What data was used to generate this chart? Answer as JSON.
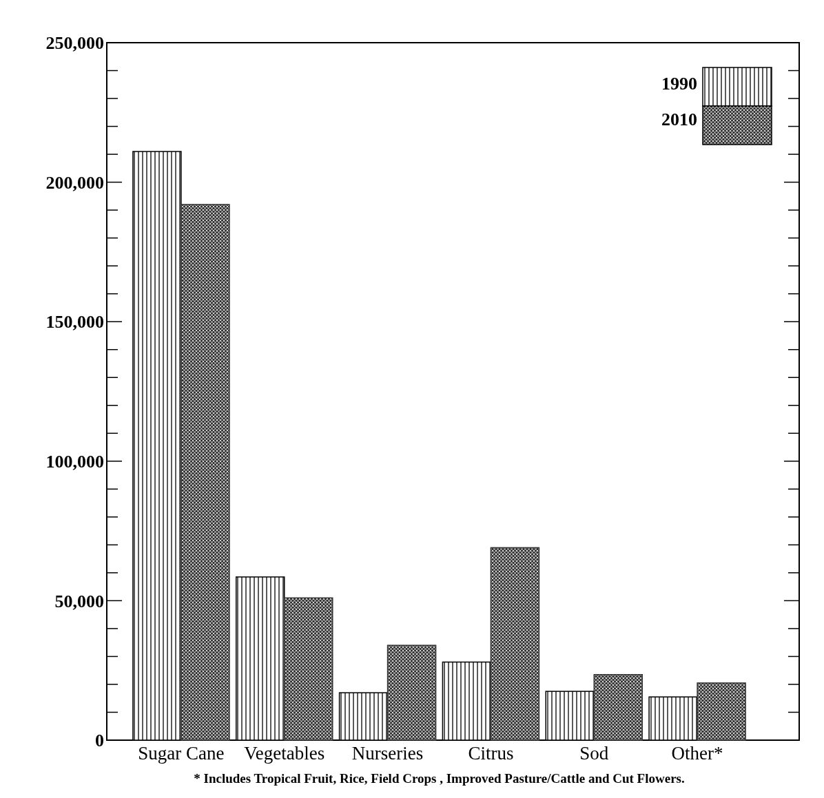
{
  "chart_data": {
    "type": "bar",
    "categories": [
      "Sugar Cane",
      "Vegetables",
      "Nurseries",
      "Citrus",
      "Sod",
      "Other*"
    ],
    "series": [
      {
        "name": "1990",
        "color": "#000000",
        "values": [
          211000,
          58500,
          17000,
          28000,
          17500,
          15500
        ]
      },
      {
        "name": "2010",
        "color": "#333333",
        "values": [
          192000,
          51000,
          34000,
          69000,
          23500,
          20500
        ]
      }
    ],
    "ylim": [
      0,
      250000
    ],
    "yticks": [
      {
        "value": 0,
        "label": "0"
      },
      {
        "value": 10000,
        "label": null
      },
      {
        "value": 20000,
        "label": null
      },
      {
        "value": 30000,
        "label": null
      },
      {
        "value": 40000,
        "label": null
      },
      {
        "value": 50000,
        "label": "50,000"
      },
      {
        "value": 60000,
        "label": null
      },
      {
        "value": 70000,
        "label": null
      },
      {
        "value": 80000,
        "label": null
      },
      {
        "value": 90000,
        "label": null
      },
      {
        "value": 100000,
        "label": "100,000"
      },
      {
        "value": 110000,
        "label": null
      },
      {
        "value": 120000,
        "label": null
      },
      {
        "value": 130000,
        "label": null
      },
      {
        "value": 140000,
        "label": null
      },
      {
        "value": 150000,
        "label": "150,000"
      },
      {
        "value": 160000,
        "label": null
      },
      {
        "value": 170000,
        "label": null
      },
      {
        "value": 180000,
        "label": null
      },
      {
        "value": 190000,
        "label": null
      },
      {
        "value": 200000,
        "label": "200,000"
      },
      {
        "value": 210000,
        "label": null
      },
      {
        "value": 220000,
        "label": null
      },
      {
        "value": 230000,
        "label": null
      },
      {
        "value": 240000,
        "label": null
      },
      {
        "value": 250000,
        "label": "250,000"
      }
    ],
    "legend": "top right",
    "annotations": [
      "* Includes Tropical Fruit, Rice, Field Crops , Improved Pasture/Cattle and Cut Flowers."
    ]
  }
}
